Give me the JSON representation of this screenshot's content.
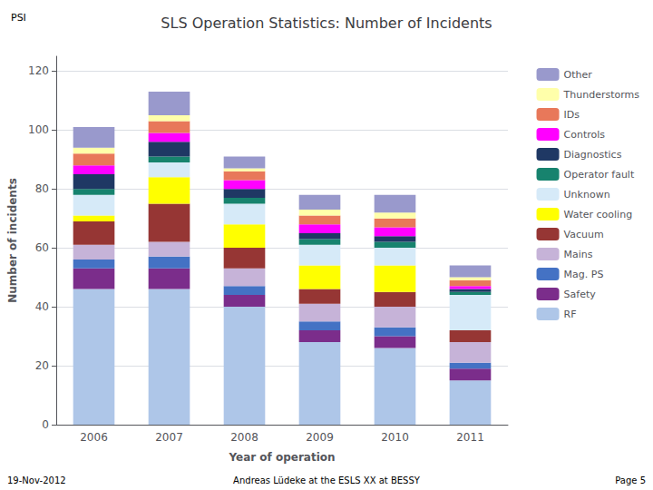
{
  "chart_data": {
    "type": "bar",
    "stacked": true,
    "title": "SLS Operation Statistics: Number of Incidents",
    "xlabel": "Year of operation",
    "ylabel": "Number of incidents",
    "categories": [
      "2006",
      "2007",
      "2008",
      "2009",
      "2010",
      "2011"
    ],
    "series": [
      {
        "name": "RF",
        "color": "#aec6e8",
        "values": [
          46,
          46,
          40,
          28,
          26,
          15
        ]
      },
      {
        "name": "Safety",
        "color": "#7b2d8b",
        "values": [
          7,
          7,
          4,
          4,
          4,
          4
        ]
      },
      {
        "name": "Mag. PS",
        "color": "#4472c4",
        "values": [
          3,
          4,
          3,
          3,
          3,
          2
        ]
      },
      {
        "name": "Mains",
        "color": "#c6b3d8",
        "values": [
          5,
          5,
          6,
          6,
          7,
          7
        ]
      },
      {
        "name": "Vacuum",
        "color": "#963634",
        "values": [
          8,
          13,
          7,
          5,
          5,
          4
        ]
      },
      {
        "name": "Water cooling",
        "color": "#ffff00",
        "values": [
          2,
          9,
          8,
          8,
          9,
          0
        ]
      },
      {
        "name": "Unknown",
        "color": "#d6eaf8",
        "values": [
          7,
          5,
          7,
          7,
          6,
          12
        ]
      },
      {
        "name": "Operator fault",
        "color": "#17836e",
        "values": [
          2,
          2,
          2,
          2,
          2,
          1
        ]
      },
      {
        "name": "Diagnostics",
        "color": "#1f3864",
        "values": [
          5,
          5,
          3,
          2,
          2,
          1
        ]
      },
      {
        "name": "Controls",
        "color": "#ff00ff",
        "values": [
          3,
          3,
          3,
          3,
          3,
          1
        ]
      },
      {
        "name": "IDs",
        "color": "#e8785a",
        "values": [
          4,
          4,
          3,
          3,
          3,
          2
        ]
      },
      {
        "name": "Thunderstorms",
        "color": "#ffffaa",
        "values": [
          2,
          2,
          1,
          2,
          2,
          1
        ]
      },
      {
        "name": "Other",
        "color": "#9999cc",
        "values": [
          7,
          8,
          4,
          5,
          6,
          4
        ]
      }
    ],
    "ylim": [
      0,
      125
    ],
    "yticks": [
      0,
      20,
      40,
      60,
      80,
      100,
      120
    ],
    "grid": true,
    "legend": "right",
    "annotations": [
      "PSI",
      "19-Nov-2012",
      "Andreas Lüdeke at the ESLS XX at BESSY",
      "Page 5"
    ]
  }
}
